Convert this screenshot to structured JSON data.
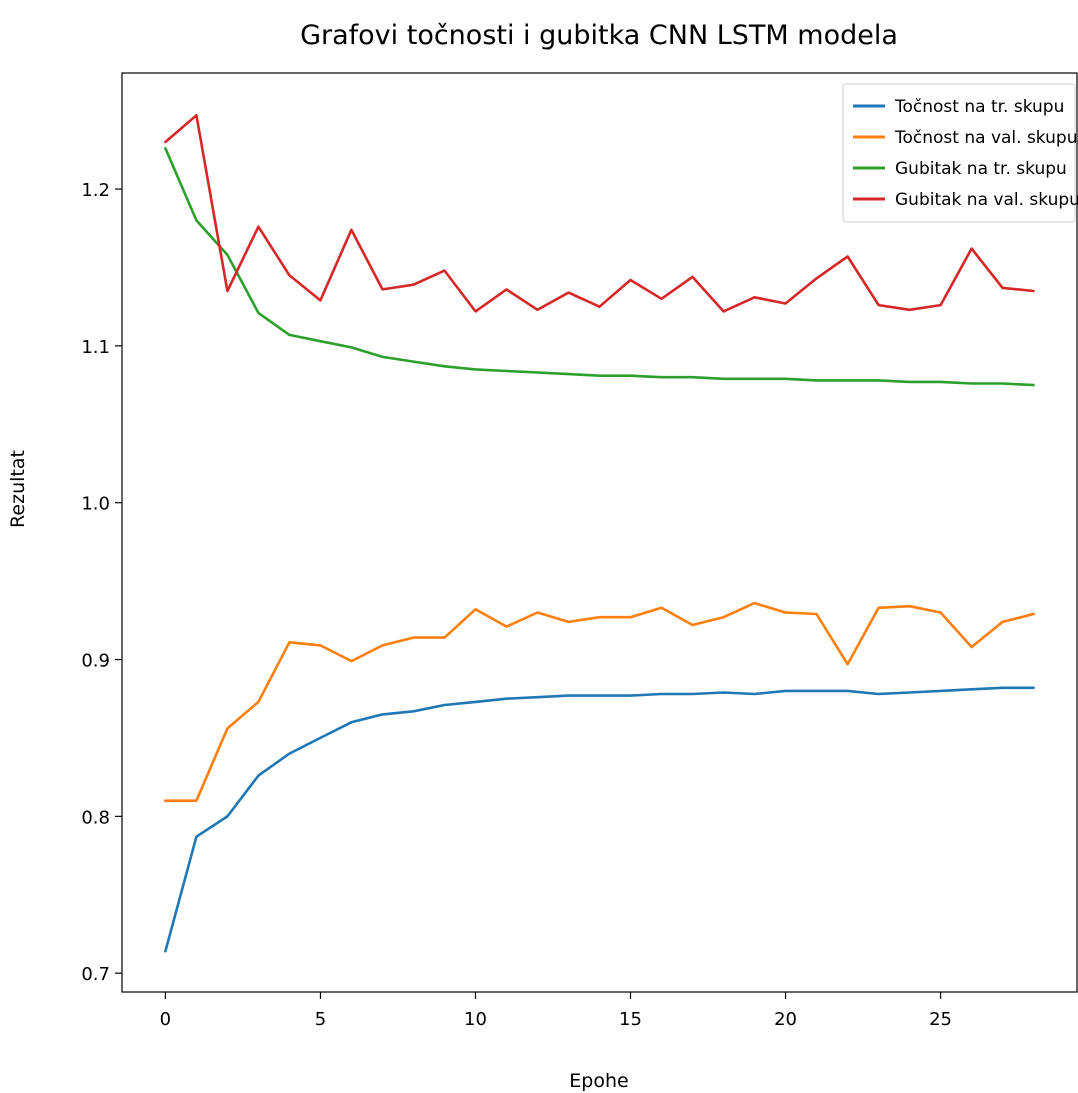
{
  "chart_data": {
    "type": "line",
    "title": "Grafovi točnosti i gubitka CNN LSTM modela",
    "xlabel": "Epohe",
    "ylabel": "Rezultat",
    "xlim": [
      -1.4,
      29.4
    ],
    "ylim": [
      0.688,
      1.274
    ],
    "xticks": [
      0,
      5,
      10,
      15,
      20,
      25
    ],
    "yticks": [
      0.7,
      0.8,
      0.9,
      1.0,
      1.1,
      1.2
    ],
    "ytick_labels": [
      "0.7",
      "0.8",
      "0.9",
      "1.0",
      "1.1",
      "1.2"
    ],
    "grid": false,
    "legend_position": "top-right",
    "x": [
      0,
      1,
      2,
      3,
      4,
      5,
      6,
      7,
      8,
      9,
      10,
      11,
      12,
      13,
      14,
      15,
      16,
      17,
      18,
      19,
      20,
      21,
      22,
      23,
      24,
      25,
      26,
      27,
      28
    ],
    "series": [
      {
        "name": "Točnost na tr. skupu",
        "color": "#1f77b4",
        "values": [
          0.714,
          0.787,
          0.8,
          0.826,
          0.84,
          0.85,
          0.86,
          0.865,
          0.867,
          0.871,
          0.873,
          0.875,
          0.876,
          0.877,
          0.877,
          0.877,
          0.878,
          0.878,
          0.879,
          0.878,
          0.88,
          0.88,
          0.88,
          0.878,
          0.879,
          0.88,
          0.881,
          0.882,
          0.882
        ]
      },
      {
        "name": "Točnost na val. skupu",
        "color": "#ff7f0e",
        "values": [
          0.81,
          0.81,
          0.856,
          0.873,
          0.911,
          0.909,
          0.899,
          0.909,
          0.914,
          0.914,
          0.932,
          0.921,
          0.93,
          0.924,
          0.927,
          0.927,
          0.933,
          0.922,
          0.927,
          0.936,
          0.93,
          0.929,
          0.897,
          0.933,
          0.934,
          0.93,
          0.908,
          0.924,
          0.929
        ]
      },
      {
        "name": "Gubitak na tr. skupu",
        "color": "#2ca02c",
        "values": [
          1.226,
          1.18,
          1.158,
          1.121,
          1.107,
          1.103,
          1.099,
          1.093,
          1.09,
          1.087,
          1.085,
          1.084,
          1.083,
          1.082,
          1.081,
          1.081,
          1.08,
          1.08,
          1.079,
          1.079,
          1.079,
          1.078,
          1.078,
          1.078,
          1.077,
          1.077,
          1.076,
          1.076,
          1.075
        ]
      },
      {
        "name": "Gubitak na val. skupu",
        "color": "#d62728",
        "values": [
          1.23,
          1.247,
          1.135,
          1.176,
          1.145,
          1.129,
          1.174,
          1.136,
          1.139,
          1.148,
          1.122,
          1.136,
          1.123,
          1.134,
          1.125,
          1.142,
          1.13,
          1.144,
          1.122,
          1.131,
          1.127,
          1.143,
          1.157,
          1.126,
          1.123,
          1.126,
          1.162,
          1.137,
          1.135
        ]
      }
    ]
  }
}
